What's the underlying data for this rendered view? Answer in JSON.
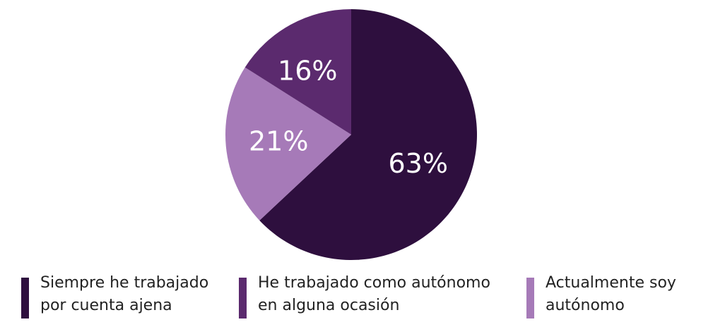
{
  "chart_data": {
    "type": "pie",
    "slices": [
      {
        "label": "Siempre he trabajado\npor cuenta ajena",
        "value": 63,
        "value_label": "63%",
        "color": "#2e0f3e"
      },
      {
        "label": "Actualmente soy\nautónomo",
        "value": 21,
        "value_label": "21%",
        "color": "#a67ab8"
      },
      {
        "label": "He trabajado como autónomo\nen alguna ocasión",
        "value": 16,
        "value_label": "16%",
        "color": "#5b2a6e"
      }
    ],
    "legend": {
      "position": "bottom",
      "order": [
        0,
        2,
        1
      ]
    }
  }
}
